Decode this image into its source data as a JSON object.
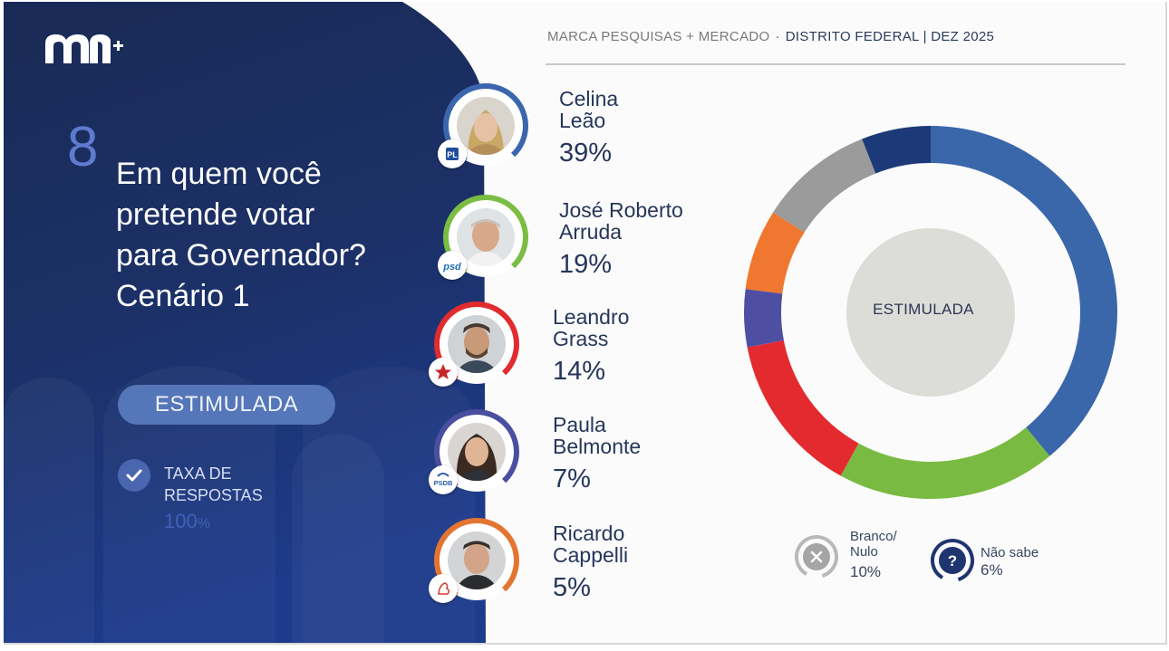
{
  "brand": {
    "logo_text": "m+"
  },
  "header": {
    "source": "MARCA PESQUISAS + MERCADO",
    "region": "DISTRITO FEDERAL",
    "period": "DEZ 2025"
  },
  "question": {
    "number": "8",
    "lines": [
      "Em quem você",
      "pretende votar",
      "para Governador?",
      "Cenário 1"
    ]
  },
  "survey_type": "ESTIMULADA",
  "response_rate": {
    "label_line1": "TAXA DE",
    "label_line2": "RESPOSTAS",
    "value": "100",
    "unit": "%"
  },
  "candidates": [
    {
      "name_line1": "Celina",
      "name_line2": "Leão",
      "pct": "39%",
      "party_icon": "pl-party-icon",
      "ring_color": "#3b66ad"
    },
    {
      "name_line1": "José Roberto",
      "name_line2": "Arruda",
      "pct": "19%",
      "party_icon": "psd-party-icon",
      "party_text": "psd",
      "ring_color": "#7bbd43"
    },
    {
      "name_line1": "Leandro",
      "name_line2": "Grass",
      "pct": "14%",
      "party_icon": "pv-star-icon",
      "ring_color": "#e02b2f"
    },
    {
      "name_line1": "Paula",
      "name_line2": "Belmonte",
      "pct": "7%",
      "party_icon": "psdb-party-icon",
      "party_text": "PSDB",
      "ring_color": "#4a4fa0"
    },
    {
      "name_line1": "Ricardo",
      "name_line2": "Cappelli",
      "pct": "5%",
      "party_icon": "psb-party-icon",
      "ring_color": "#e47530"
    }
  ],
  "legend": {
    "blank": {
      "line1": "Branco/",
      "line2": "Nulo",
      "value": "10%",
      "icon": "x-circle-icon"
    },
    "unknown": {
      "label": "Não sabe",
      "value": "6%",
      "icon": "question-circle-icon"
    }
  },
  "chart_data": {
    "type": "pie",
    "variant": "donut",
    "center_label": "ESTIMULADA",
    "labels": [
      "Celina Leão",
      "José Roberto Arruda",
      "Leandro Grass",
      "Paula Belmonte",
      "Ricardo Cappelli",
      "Branco/Nulo",
      "Não sabe"
    ],
    "values": [
      39,
      19,
      14,
      7,
      5,
      10,
      6
    ],
    "colors": [
      "#3a67aa",
      "#79bb42",
      "#e32b2f",
      "#f0772f",
      "#4e4fa3",
      "#9b9b9b",
      "#1d3a78"
    ],
    "display_order": [
      0,
      1,
      2,
      4,
      3,
      5,
      6
    ],
    "start": "top, clockwise"
  }
}
